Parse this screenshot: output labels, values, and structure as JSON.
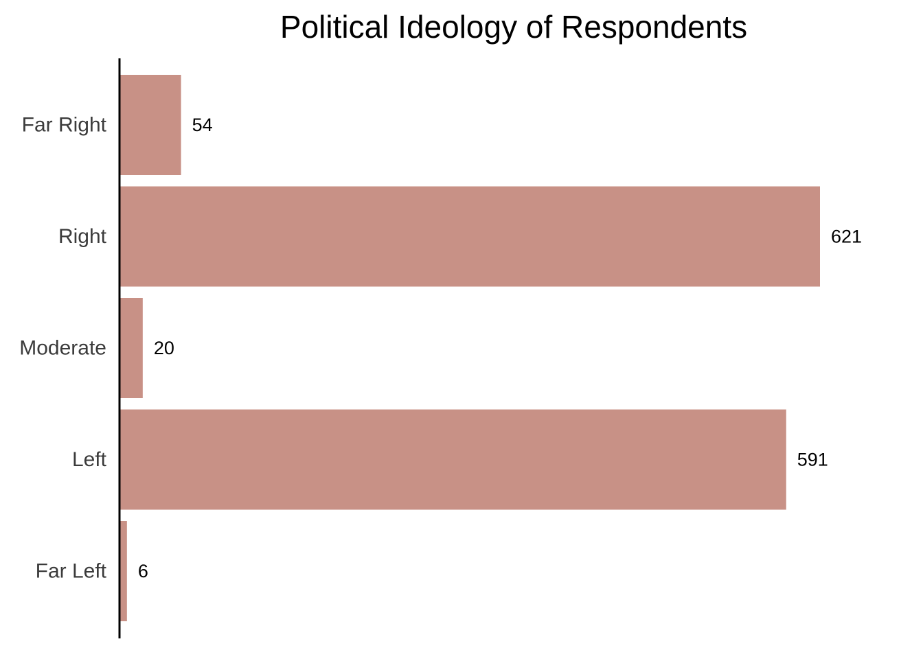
{
  "chart_data": {
    "type": "bar",
    "orientation": "horizontal",
    "title": "Political Ideology of Respondents",
    "xlabel": "",
    "ylabel": "",
    "categories": [
      "Far Right",
      "Right",
      "Moderate",
      "Left",
      "Far Left"
    ],
    "values": [
      54,
      621,
      20,
      591,
      6
    ],
    "data_labels": [
      "54",
      "621",
      "20",
      "591",
      "6"
    ],
    "xlim": [
      0,
      621
    ],
    "grid": false,
    "legend": "none",
    "bar_color": "#c89186",
    "axis_color": "#000000"
  }
}
